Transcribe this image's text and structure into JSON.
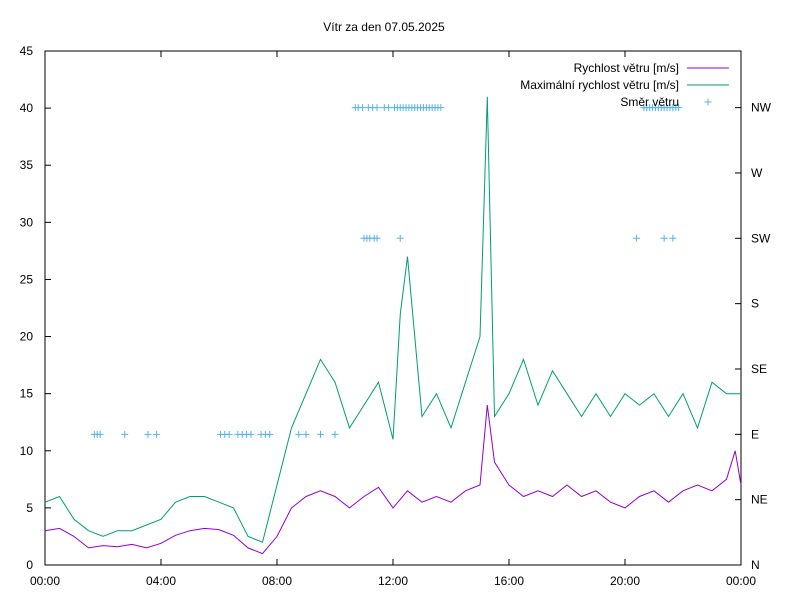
{
  "chart_data": {
    "type": "line",
    "title": "Vítr za den 07.05.2025",
    "xlabel": "",
    "ylabel": "",
    "x_ticks": [
      "00:00",
      "04:00",
      "08:00",
      "12:00",
      "16:00",
      "20:00",
      "00:00"
    ],
    "x_tick_hours": [
      0,
      4,
      8,
      12,
      16,
      20,
      24
    ],
    "xlim": [
      0,
      24
    ],
    "y_ticks": [
      0,
      5,
      10,
      15,
      20,
      25,
      30,
      35,
      40,
      45
    ],
    "ylim": [
      0,
      45
    ],
    "y2_ticks": [
      "N",
      "NE",
      "E",
      "SE",
      "S",
      "SW",
      "W",
      "NW"
    ],
    "y2_directions_deg": [
      0,
      45,
      90,
      135,
      180,
      225,
      270,
      315
    ],
    "y2lim": [
      0,
      354
    ],
    "grid": false,
    "legend_position": "top-right",
    "series": [
      {
        "name": "Rychlost větru [m/s]",
        "axis": "y",
        "color": "#9400d3",
        "x": [
          0,
          0.5,
          1,
          1.5,
          2,
          2.5,
          3,
          3.5,
          4,
          4.5,
          5,
          5.5,
          6,
          6.5,
          7,
          7.5,
          8,
          8.5,
          9,
          9.5,
          10,
          10.5,
          11,
          11.5,
          12,
          12.5,
          13,
          13.5,
          14,
          14.5,
          15,
          15.25,
          15.5,
          16,
          16.5,
          17,
          17.5,
          18,
          18.5,
          19,
          19.5,
          20,
          20.5,
          21,
          21.5,
          22,
          22.5,
          23,
          23.5,
          23.8,
          24
        ],
        "values": [
          3,
          3.2,
          2.5,
          1.5,
          1.7,
          1.6,
          1.8,
          1.5,
          1.9,
          2.6,
          3,
          3.2,
          3.1,
          2.6,
          1.5,
          1,
          2.5,
          5,
          6,
          6.5,
          6,
          5,
          6,
          6.8,
          5,
          6.5,
          5.5,
          6,
          5.5,
          6.5,
          7,
          14,
          9,
          7,
          6,
          6.5,
          6,
          7,
          6,
          6.5,
          5.5,
          5,
          6,
          6.5,
          5.5,
          6.5,
          7,
          6.5,
          7.5,
          10,
          7
        ]
      },
      {
        "name": "Maximální rychlost větru [m/s]",
        "axis": "y",
        "color": "#009e73",
        "x": [
          0,
          0.5,
          1,
          1.5,
          2,
          2.5,
          3,
          3.5,
          4,
          4.5,
          5,
          5.5,
          6,
          6.5,
          7,
          7.5,
          8,
          8.5,
          9,
          9.5,
          10,
          10.5,
          11,
          11.5,
          12,
          12.25,
          12.5,
          13,
          13.5,
          14,
          14.5,
          15,
          15.25,
          15.5,
          16,
          16.5,
          17,
          17.5,
          18,
          18.5,
          19,
          19.5,
          20,
          20.5,
          21,
          21.5,
          22,
          22.5,
          23,
          23.5,
          24
        ],
        "values": [
          5.5,
          6,
          4,
          3,
          2.5,
          3,
          3,
          3.5,
          4,
          5.5,
          6,
          6,
          5.5,
          5,
          2.5,
          2,
          7,
          12,
          15,
          18,
          16,
          12,
          14,
          16,
          11,
          22,
          27,
          13,
          15,
          12,
          16,
          20,
          41,
          13,
          15,
          18,
          14,
          17,
          15,
          13,
          15,
          13,
          15,
          14,
          15,
          13,
          15,
          12,
          16,
          15,
          15
        ]
      },
      {
        "name": "Směr větru",
        "axis": "y2",
        "color": "#56b4e9",
        "marker": "+",
        "x": [
          1.7,
          1.8,
          1.9,
          2.75,
          3.55,
          3.85,
          6.05,
          6.2,
          6.35,
          6.65,
          6.8,
          6.95,
          7.1,
          7.45,
          7.6,
          7.75,
          8.75,
          9.0,
          9.5,
          10.0,
          10.7,
          10.8,
          10.95,
          11.15,
          11.3,
          11.45,
          11.7,
          11.85,
          12.05,
          12.15,
          12.25,
          12.35,
          12.45,
          12.55,
          12.65,
          12.75,
          12.85,
          12.95,
          13.05,
          13.15,
          13.25,
          13.35,
          13.45,
          13.55,
          13.65,
          11.0,
          11.1,
          11.2,
          11.35,
          11.45,
          12.25,
          20.4,
          21.35,
          21.65,
          20.65,
          20.75,
          20.85,
          20.95,
          21.05,
          21.15,
          21.25,
          21.35,
          21.45,
          21.55,
          21.65,
          21.75,
          21.85
        ],
        "values": [
          90,
          90,
          90,
          90,
          90,
          90,
          90,
          90,
          90,
          90,
          90,
          90,
          90,
          90,
          90,
          90,
          90,
          90,
          90,
          90,
          315,
          315,
          315,
          315,
          315,
          315,
          315,
          315,
          315,
          315,
          315,
          315,
          315,
          315,
          315,
          315,
          315,
          315,
          315,
          315,
          315,
          315,
          315,
          315,
          315,
          225,
          225,
          225,
          225,
          225,
          225,
          225,
          225,
          225,
          315,
          315,
          315,
          315,
          315,
          315,
          315,
          315,
          315,
          315,
          315,
          315,
          315
        ]
      }
    ]
  }
}
